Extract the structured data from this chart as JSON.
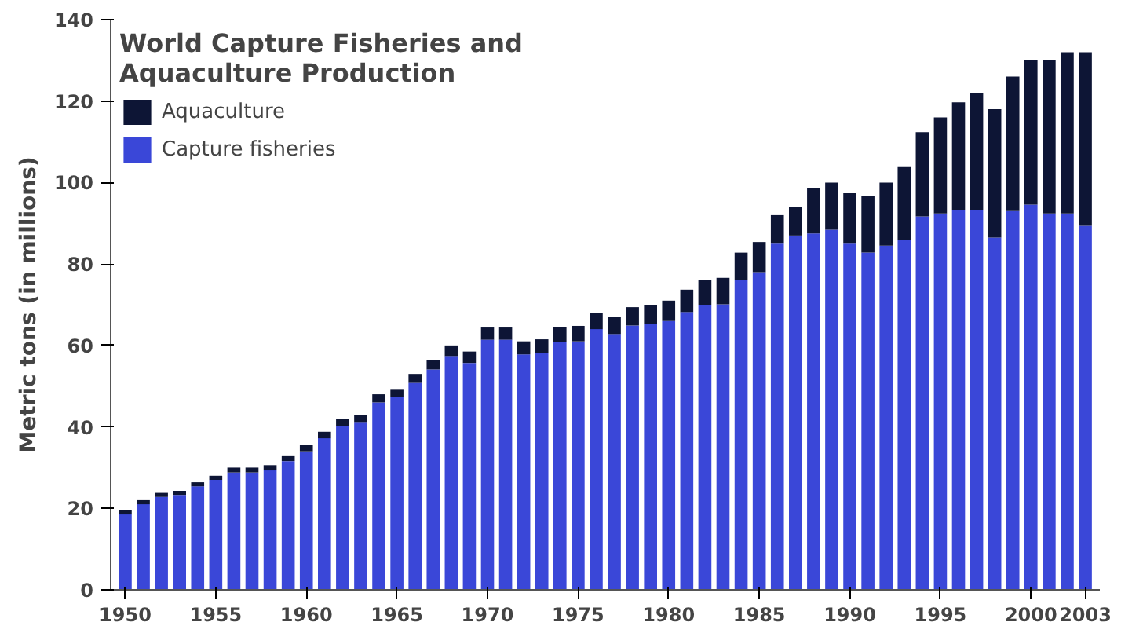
{
  "chart_data": {
    "type": "bar",
    "stacked": true,
    "title": "World Capture Fisheries and\nAquaculture Production",
    "ylabel": "Metric tons (in millions)",
    "x": [
      1950,
      1951,
      1952,
      1953,
      1954,
      1955,
      1956,
      1957,
      1958,
      1959,
      1960,
      1961,
      1962,
      1963,
      1964,
      1965,
      1966,
      1967,
      1968,
      1969,
      1970,
      1971,
      1972,
      1973,
      1974,
      1975,
      1976,
      1977,
      1978,
      1979,
      1980,
      1981,
      1982,
      1983,
      1984,
      1985,
      1986,
      1987,
      1988,
      1989,
      1990,
      1991,
      1992,
      1993,
      1994,
      1995,
      1996,
      1997,
      1998,
      1999,
      2000,
      2001,
      2002,
      2003
    ],
    "series": [
      {
        "name": "Capture fisheries",
        "color": "#3a47d8",
        "values": [
          18.5,
          21,
          22.8,
          23.3,
          25.4,
          27,
          28.8,
          28.8,
          29.3,
          31.6,
          34,
          37.2,
          40.3,
          41.2,
          46,
          47.3,
          50.8,
          54.1,
          57.4,
          55.7,
          61.4,
          61.4,
          57.8,
          58.1,
          60.9,
          61,
          64,
          62.8,
          64.9,
          65.2,
          66,
          68.2,
          70,
          70.1,
          76,
          78,
          85,
          87,
          87.5,
          88.4,
          85,
          82.8,
          84.5,
          85.8,
          91.7,
          92.4,
          93.3,
          93.3,
          86.5,
          93,
          94.6,
          92.4,
          92.4,
          89.4
        ]
      },
      {
        "name": "Aquaculture",
        "color": "#0d1535",
        "values": [
          1,
          1,
          1,
          1,
          1,
          1,
          1.2,
          1.2,
          1.3,
          1.4,
          1.5,
          1.6,
          1.7,
          1.8,
          2,
          2,
          2.2,
          2.4,
          2.6,
          2.8,
          3,
          3,
          3.2,
          3.4,
          3.6,
          3.8,
          4,
          4.2,
          4.5,
          4.8,
          5,
          5.5,
          6,
          6.5,
          6.8,
          7.4,
          7,
          7,
          11.1,
          11.6,
          12.4,
          13.8,
          15.5,
          18,
          20.7,
          23.6,
          26.4,
          28.7,
          31.5,
          33,
          35.4,
          37.6,
          39.6,
          42.6
        ]
      }
    ],
    "xlim": [
      1949.2,
      2003.8
    ],
    "xticks": [
      1950,
      1955,
      1960,
      1965,
      1970,
      1975,
      1980,
      1985,
      1990,
      1995,
      2000,
      2003
    ],
    "ylim": [
      0,
      140
    ],
    "yticks": [
      0,
      20,
      40,
      60,
      80,
      100,
      120,
      140
    ],
    "grid": false,
    "legend": "top left"
  }
}
